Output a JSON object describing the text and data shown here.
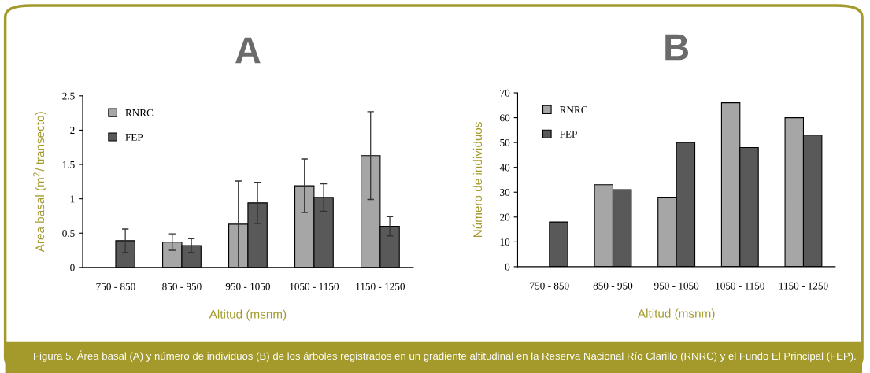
{
  "chart_data": [
    {
      "type": "bar",
      "title": "A",
      "xlabel": "Altitud (msnm)",
      "ylabel": "Area basal (m$^{2}$/ transecto)",
      "categories": [
        "750 - 850",
        "850 - 950",
        "950 - 1050",
        "1050 - 1150",
        "1150 - 1250"
      ],
      "ylim": [
        0,
        2.5
      ],
      "yticks": [
        0,
        0.5,
        1,
        1.5,
        2,
        2.5
      ],
      "grid": false,
      "legend": "top left",
      "series": [
        {
          "name": "RNRC",
          "color": "#a6a6a6",
          "values": [
            null,
            0.37,
            0.63,
            1.19,
            1.63
          ],
          "errors": [
            null,
            0.12,
            0.63,
            0.39,
            0.64
          ]
        },
        {
          "name": "FEP",
          "color": "#595959",
          "values": [
            0.39,
            0.32,
            0.94,
            1.02,
            0.6
          ],
          "errors": [
            0.17,
            0.1,
            0.3,
            0.2,
            0.14
          ]
        }
      ],
      "annotations": [
        "Figura 5. Área basal (A) y número de individuos (B) de los árboles registrados en un gradiente altitudinal en la Reserva Nacional Río Clarillo (RNRC) y el Fundo El Principal (FEP)."
      ]
    },
    {
      "type": "bar",
      "title": "B",
      "xlabel": "Altitud (msnm)",
      "ylabel": "Número de individuos",
      "categories": [
        "750 - 850",
        "850 - 950",
        "950 - 1050",
        "1050 - 1150",
        "1150 - 1250"
      ],
      "ylim": [
        0,
        70
      ],
      "yticks": [
        0,
        10,
        20,
        30,
        40,
        50,
        60,
        70
      ],
      "grid": false,
      "legend": "top left",
      "series": [
        {
          "name": "RNRC",
          "color": "#a6a6a6",
          "values": [
            null,
            33,
            28,
            66,
            60
          ]
        },
        {
          "name": "FEP",
          "color": "#595959",
          "values": [
            18,
            31,
            50,
            48,
            53
          ]
        }
      ]
    }
  ]
}
